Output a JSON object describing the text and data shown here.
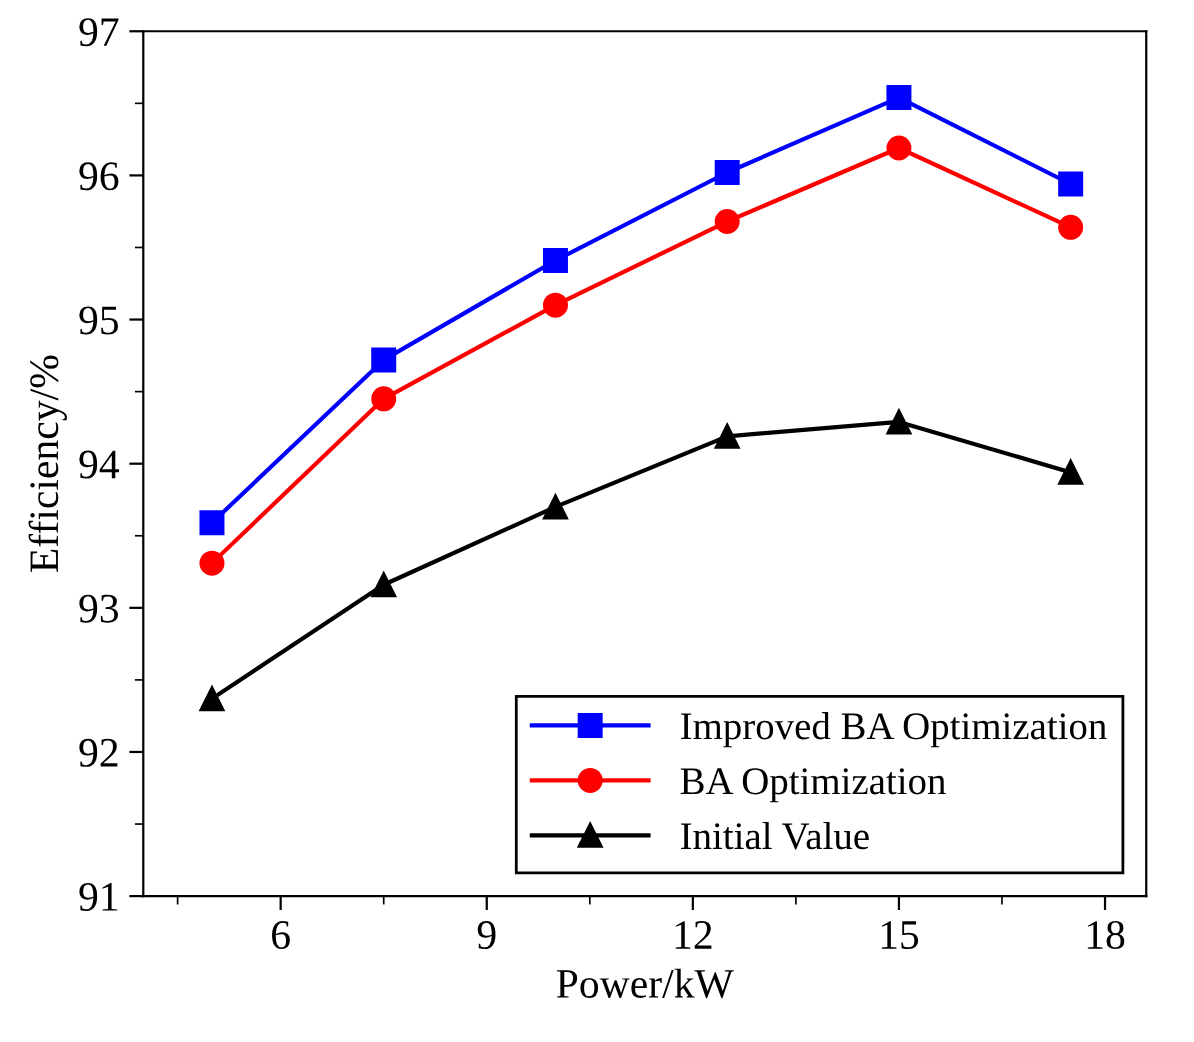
{
  "chart_data": {
    "type": "line",
    "xlabel": "Power/kW",
    "ylabel": "Efficiency/%",
    "x": [
      5,
      7.5,
      10,
      12.5,
      15,
      17.5
    ],
    "series": [
      {
        "name": "Improved BA Optimization",
        "color": "#0000ff",
        "marker": "square",
        "values": [
          93.59,
          94.72,
          95.41,
          96.02,
          96.54,
          95.94
        ]
      },
      {
        "name": "BA Optimization",
        "color": "#ff0000",
        "marker": "circle",
        "values": [
          93.31,
          94.45,
          95.1,
          95.68,
          96.19,
          95.64
        ]
      },
      {
        "name": "Initial Value",
        "color": "#000000",
        "marker": "triangle",
        "values": [
          92.37,
          93.16,
          93.7,
          94.19,
          94.29,
          93.94
        ]
      }
    ],
    "xlim": [
      4,
      18.6
    ],
    "xticks": [
      6,
      9,
      12,
      15,
      18
    ],
    "ylim": [
      91,
      97
    ],
    "yticks": [
      91,
      92,
      93,
      94,
      95,
      96,
      97
    ],
    "legend": "bottom right",
    "grid": false,
    "line_style": "solid"
  }
}
